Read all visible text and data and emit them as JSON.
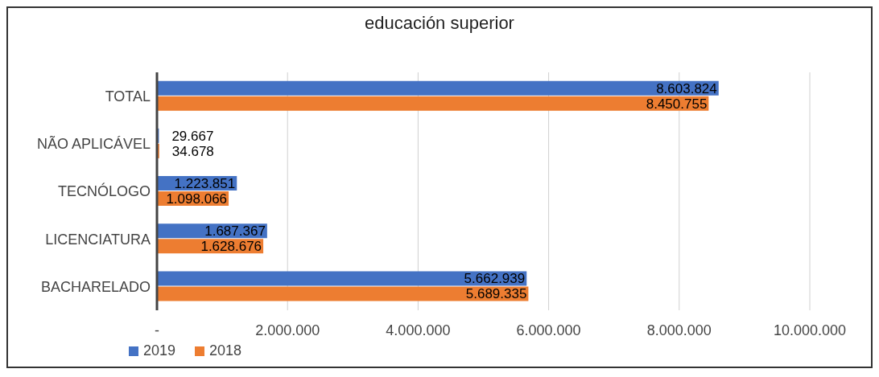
{
  "chart_data": {
    "type": "bar",
    "orientation": "horizontal",
    "title": "educación superior",
    "categories": [
      "TOTAL",
      "NÃO APLICÁVEL",
      "TECNÓLOGO",
      "LICENCIATURA",
      "BACHARELADO"
    ],
    "series": [
      {
        "name": "2019",
        "color": "#4472c4",
        "values": [
          8603824,
          29667,
          1223851,
          1687367,
          5662939
        ],
        "value_labels": [
          "8.603.824",
          "29.667",
          "1.223.851",
          "1.687.367",
          "5.662.939"
        ]
      },
      {
        "name": "2018",
        "color": "#ed7d31",
        "values": [
          8450755,
          34678,
          1098066,
          1628676,
          5689335
        ],
        "value_labels": [
          "8.450.755",
          "34.678",
          "1.098.066",
          "1.628.676",
          "5.689.335"
        ]
      }
    ],
    "xlim": [
      0,
      10000000
    ],
    "xticks": [
      {
        "value": 0,
        "label": "-"
      },
      {
        "value": 2000000,
        "label": "2.000.000"
      },
      {
        "value": 4000000,
        "label": "4.000.000"
      },
      {
        "value": 6000000,
        "label": "6.000.000"
      },
      {
        "value": 8000000,
        "label": "8.000.000"
      },
      {
        "value": 10000000,
        "label": "10.000.000"
      }
    ],
    "grid": "x",
    "legend": "bottom left"
  }
}
